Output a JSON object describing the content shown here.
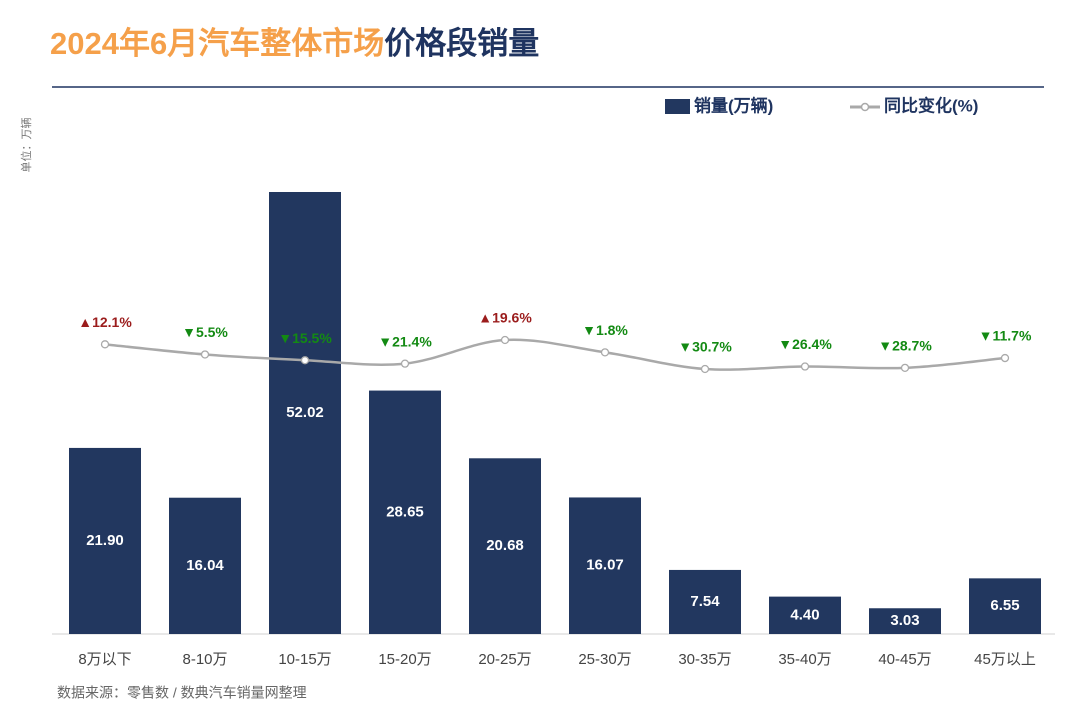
{
  "chart_data": {
    "type": "bar",
    "title": [
      "2024年6月汽车整体市场",
      "价格段销量"
    ],
    "title_colors": [
      "#f5a04a",
      "#1f3460"
    ],
    "unit_label": "单位：万辆",
    "source": "数据来源：零售数 / 数典汽车销量网整理",
    "categories": [
      "8万以下",
      "8-10万",
      "10-15万",
      "15-20万",
      "20-25万",
      "25-30万",
      "30-35万",
      "35-40万",
      "40-45万",
      "45万以上"
    ],
    "series": [
      {
        "name": "销量(万辆)",
        "type": "bar",
        "color": "#22375f",
        "values": [
          21.9,
          16.04,
          52.02,
          28.65,
          20.68,
          16.07,
          7.54,
          4.4,
          3.03,
          6.55
        ],
        "value_labels": [
          "21.90",
          "16.04",
          "52.02",
          "28.65",
          "20.68",
          "16.07",
          "7.54",
          "4.40",
          "3.03",
          "6.55"
        ]
      },
      {
        "name": "同比变化(%)",
        "type": "line",
        "axis": "y2",
        "color": "#a9a9a9",
        "values": [
          12.1,
          -5.5,
          -15.5,
          -21.4,
          19.6,
          -1.8,
          -30.7,
          -26.4,
          -28.7,
          -11.7
        ],
        "value_labels": [
          "▲12.1%",
          "▼5.5%",
          "▼15.5%",
          "▼21.4%",
          "▲19.6%",
          "▼1.8%",
          "▼30.7%",
          "▼26.4%",
          "▼28.7%",
          "▼11.7%"
        ],
        "label_colors": {
          "up": "#9b1c1c",
          "down": "#138a13"
        }
      }
    ]
  }
}
